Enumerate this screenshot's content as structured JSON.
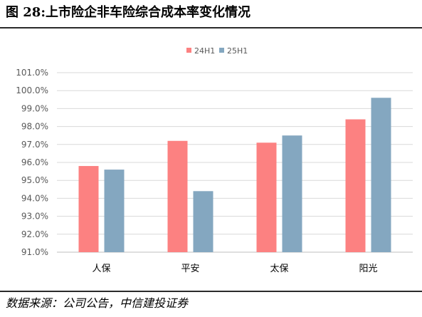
{
  "header": {
    "title": "图 28:上市险企非车险综合成本率变化情况"
  },
  "footer": {
    "source": "数据来源：公司公告，中信建投证券"
  },
  "colors": {
    "series_24H1": "#fc8181",
    "series_25H1": "#84a7c0",
    "grid": "#d9d9d9",
    "axis_text": "#595959"
  },
  "chart_data": {
    "type": "bar",
    "categories": [
      "人保",
      "平安",
      "太保",
      "阳光"
    ],
    "series": [
      {
        "name": "24H1",
        "values": [
          95.8,
          97.2,
          97.1,
          98.4
        ]
      },
      {
        "name": "25H1",
        "values": [
          95.6,
          94.4,
          97.5,
          99.6
        ]
      }
    ],
    "yticks": [
      "91.0%",
      "92.0%",
      "93.0%",
      "94.0%",
      "95.0%",
      "96.0%",
      "97.0%",
      "98.0%",
      "99.0%",
      "100.0%",
      "101.0%"
    ],
    "ylim": [
      91.0,
      101.0
    ],
    "grid": true,
    "legend_position": "top-center"
  }
}
